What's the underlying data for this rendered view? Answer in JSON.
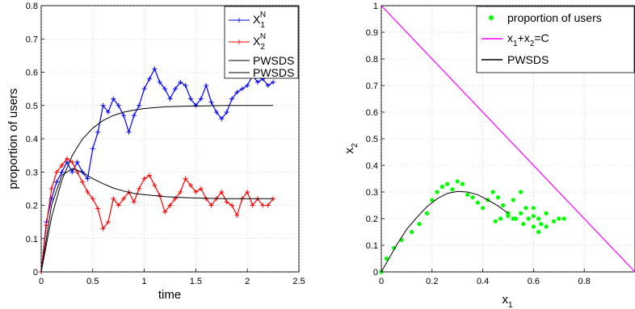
{
  "chart_data": [
    {
      "type": "line",
      "xlabel": "time",
      "ylabel": "proportion of users",
      "xlim": [
        0,
        2.5
      ],
      "ylim": [
        0,
        0.8
      ],
      "xticks": [
        "0",
        "0.5",
        "1",
        "1.5",
        "2",
        "2.5"
      ],
      "yticks": [
        "0",
        "0.1",
        "0.2",
        "0.3",
        "0.4",
        "0.5",
        "0.6",
        "0.7",
        "0.8"
      ],
      "grid": true,
      "legend_position": "top-right",
      "series": [
        {
          "name": "X1N",
          "name_base": "X",
          "name_sub": "1",
          "name_sup": "N",
          "color": "#0000ff",
          "marker": "+",
          "x": [
            0,
            0.05,
            0.1,
            0.15,
            0.2,
            0.25,
            0.3,
            0.35,
            0.4,
            0.45,
            0.5,
            0.55,
            0.6,
            0.65,
            0.7,
            0.75,
            0.8,
            0.85,
            0.9,
            0.95,
            1.0,
            1.05,
            1.1,
            1.15,
            1.2,
            1.25,
            1.3,
            1.35,
            1.4,
            1.45,
            1.5,
            1.55,
            1.6,
            1.65,
            1.7,
            1.75,
            1.8,
            1.85,
            1.9,
            1.95,
            2.0,
            2.05,
            2.1,
            2.15,
            2.2,
            2.25
          ],
          "y": [
            0,
            0.15,
            0.22,
            0.27,
            0.3,
            0.33,
            0.3,
            0.33,
            0.3,
            0.28,
            0.37,
            0.42,
            0.5,
            0.48,
            0.52,
            0.5,
            0.47,
            0.42,
            0.47,
            0.5,
            0.55,
            0.58,
            0.61,
            0.57,
            0.55,
            0.52,
            0.55,
            0.57,
            0.56,
            0.52,
            0.5,
            0.52,
            0.56,
            0.51,
            0.48,
            0.46,
            0.48,
            0.52,
            0.54,
            0.55,
            0.56,
            0.59,
            0.57,
            0.58,
            0.56,
            0.57
          ]
        },
        {
          "name": "X2N",
          "name_base": "X",
          "name_sub": "2",
          "name_sup": "N",
          "color": "#ff0000",
          "marker": "+",
          "x": [
            0,
            0.05,
            0.1,
            0.15,
            0.2,
            0.25,
            0.3,
            0.35,
            0.4,
            0.45,
            0.5,
            0.55,
            0.6,
            0.65,
            0.7,
            0.75,
            0.8,
            0.85,
            0.9,
            0.95,
            1.0,
            1.05,
            1.1,
            1.15,
            1.2,
            1.25,
            1.3,
            1.35,
            1.4,
            1.45,
            1.5,
            1.55,
            1.6,
            1.65,
            1.7,
            1.75,
            1.8,
            1.85,
            1.9,
            1.95,
            2.0,
            2.05,
            2.1,
            2.15,
            2.2,
            2.25
          ],
          "y": [
            0,
            0.14,
            0.25,
            0.3,
            0.32,
            0.34,
            0.33,
            0.3,
            0.27,
            0.24,
            0.22,
            0.19,
            0.13,
            0.15,
            0.22,
            0.2,
            0.22,
            0.24,
            0.21,
            0.25,
            0.28,
            0.29,
            0.26,
            0.23,
            0.18,
            0.2,
            0.22,
            0.24,
            0.28,
            0.26,
            0.24,
            0.25,
            0.22,
            0.2,
            0.22,
            0.24,
            0.21,
            0.2,
            0.17,
            0.22,
            0.24,
            0.2,
            0.22,
            0.2,
            0.2,
            0.22
          ]
        },
        {
          "name": "PWSDS",
          "color": "#000000",
          "marker": "",
          "x": [
            0,
            0.1,
            0.2,
            0.3,
            0.4,
            0.5,
            0.6,
            0.7,
            0.8,
            0.9,
            1.0,
            1.2,
            1.4,
            1.6,
            1.8,
            2.0,
            2.25
          ],
          "y": [
            0,
            0.164,
            0.275,
            0.349,
            0.399,
            0.432,
            0.455,
            0.47,
            0.48,
            0.486,
            0.491,
            0.496,
            0.498,
            0.499,
            0.5,
            0.5,
            0.5
          ]
        },
        {
          "name": "PWSDS",
          "color": "#000000",
          "marker": "",
          "x": [
            0,
            0.1,
            0.2,
            0.3,
            0.4,
            0.5,
            0.6,
            0.7,
            0.8,
            0.9,
            1.0,
            1.2,
            1.4,
            1.6,
            1.8,
            2.0,
            2.25
          ],
          "y": [
            0,
            0.2,
            0.29,
            0.31,
            0.3,
            0.28,
            0.265,
            0.252,
            0.243,
            0.236,
            0.232,
            0.226,
            0.223,
            0.221,
            0.22,
            0.22,
            0.22
          ]
        }
      ]
    },
    {
      "type": "scatter",
      "xlabel": "x1",
      "xlabel_base": "x",
      "xlabel_sub": "1",
      "ylabel": "x2",
      "ylabel_base": "x",
      "ylabel_sub": "2",
      "xlim": [
        0,
        1
      ],
      "ylim": [
        0,
        1
      ],
      "xticks": [
        "0",
        "0.2",
        "0.4",
        "0.6",
        "0.8"
      ],
      "yticks": [
        "0",
        "0.1",
        "0.2",
        "0.3",
        "0.4",
        "0.5",
        "0.6",
        "0.7",
        "0.8",
        "0.9",
        "1"
      ],
      "grid": true,
      "legend_position": "top-right",
      "series": [
        {
          "name": "proportion of users",
          "color": "#00ff00",
          "marker": "dot",
          "x": [
            0,
            0.02,
            0.05,
            0.08,
            0.12,
            0.15,
            0.18,
            0.2,
            0.22,
            0.24,
            0.26,
            0.28,
            0.3,
            0.32,
            0.34,
            0.36,
            0.38,
            0.4,
            0.42,
            0.44,
            0.46,
            0.48,
            0.5,
            0.52,
            0.55,
            0.57,
            0.58,
            0.56,
            0.53,
            0.5,
            0.47,
            0.45,
            0.5,
            0.52,
            0.55,
            0.6,
            0.62,
            0.65,
            0.62,
            0.6,
            0.58,
            0.6,
            0.63,
            0.65,
            0.68,
            0.7,
            0.72
          ],
          "y": [
            0,
            0.05,
            0.09,
            0.12,
            0.15,
            0.18,
            0.22,
            0.27,
            0.3,
            0.32,
            0.33,
            0.31,
            0.34,
            0.33,
            0.29,
            0.28,
            0.26,
            0.24,
            0.27,
            0.3,
            0.28,
            0.25,
            0.22,
            0.27,
            0.3,
            0.24,
            0.2,
            0.18,
            0.2,
            0.22,
            0.2,
            0.19,
            0.21,
            0.2,
            0.22,
            0.24,
            0.2,
            0.17,
            0.15,
            0.17,
            0.2,
            0.21,
            0.18,
            0.22,
            0.19,
            0.2,
            0.2
          ]
        },
        {
          "name": "x1+x2=C",
          "name_base1": "x",
          "name_sub1": "1",
          "name_mid": "+x",
          "name_sub2": "2",
          "name_end": "=C",
          "color": "#ff00ff",
          "marker": "",
          "x": [
            0,
            1
          ],
          "y": [
            1,
            0
          ]
        },
        {
          "name": "PWSDS",
          "color": "#000000",
          "marker": "",
          "x": [
            0,
            0.03,
            0.06,
            0.1,
            0.14,
            0.18,
            0.22,
            0.26,
            0.3,
            0.34,
            0.38,
            0.42,
            0.46,
            0.5
          ],
          "y": [
            0,
            0.05,
            0.1,
            0.16,
            0.205,
            0.245,
            0.275,
            0.295,
            0.302,
            0.3,
            0.29,
            0.27,
            0.248,
            0.22
          ]
        }
      ]
    }
  ]
}
